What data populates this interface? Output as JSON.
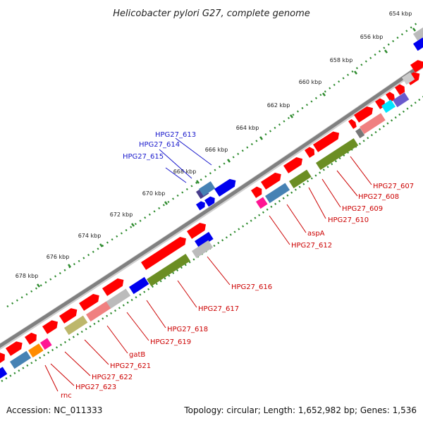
{
  "title": "Helicobacter pylori G27, complete genome",
  "footer": {
    "accession": "Accession: NC_011333",
    "topology": "Topology: circular; Length: 1,652,982 bp; Genes: 1,536"
  },
  "colors": {
    "backbone": "#808080",
    "ruler_dots": "#2e8b2e",
    "red_label": "#cc0000",
    "blue_label": "#1a1acc",
    "red_gene": "#ff0000",
    "blue_gene": "#0000ee",
    "olive": "#6b8e23",
    "steelblue": "#4682b4",
    "salmon": "#f08080",
    "grey": "#bbbbbb",
    "magenta": "#ff1493",
    "orange": "#ff8c00",
    "khaki": "#bdb76b",
    "cyan": "#00e5ff",
    "slate": "#6a5acd",
    "darkslate": "#483d8b"
  },
  "ruler": {
    "ticks": [
      "654 kbp",
      "656 kbp",
      "658 kbp",
      "660 kbp",
      "662 kbp",
      "664 kbp",
      "666 kbp",
      "668 kbp",
      "670 kbp",
      "672 kbp",
      "674 kbp",
      "676 kbp",
      "678 kbp"
    ]
  },
  "labels": {
    "blue": [
      "HPG27_613",
      "HPG27_614",
      "HPG27_615"
    ],
    "red": [
      "HPG27_607",
      "HPG27_608",
      "HPG27_609",
      "HPG27_610",
      "aspA",
      "HPG27_612",
      "HPG27_616",
      "HPG27_617",
      "HPG27_618",
      "HPG27_619",
      "gatB",
      "HPG27_621",
      "HPG27_622",
      "HPG27_623",
      "rnc"
    ]
  }
}
